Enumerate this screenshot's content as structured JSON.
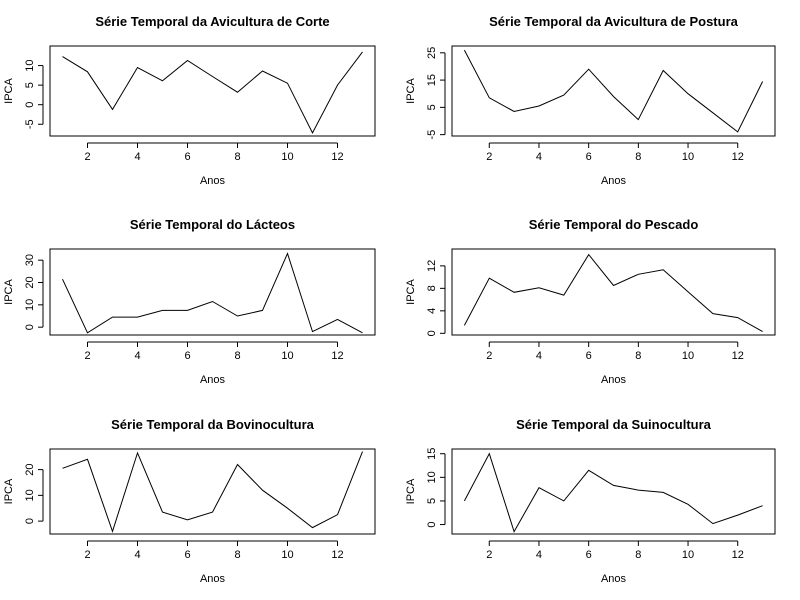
{
  "chart_data": [
    {
      "type": "line",
      "title": "Série Temporal da Avicultura de Corte",
      "xlabel": "Anos",
      "ylabel": "IPCA",
      "x": [
        1,
        2,
        3,
        4,
        5,
        6,
        7,
        8,
        9,
        10,
        11,
        12,
        13
      ],
      "values": [
        12.3,
        8.4,
        -1.2,
        9.5,
        6.1,
        11.3,
        7.2,
        3.2,
        8.6,
        5.5,
        -7.2,
        5.0,
        13.5
      ],
      "xticks": [
        "2",
        "4",
        "6",
        "8",
        "10",
        "12"
      ],
      "yticks": [
        "-5",
        "0",
        "5",
        "10"
      ],
      "xlim": [
        0.5,
        13.5
      ],
      "ylim": [
        -8,
        15
      ],
      "grid": false
    },
    {
      "type": "line",
      "title": "Série Temporal da Avicultura de Postura",
      "xlabel": "Anos",
      "ylabel": "IPCA",
      "x": [
        1,
        2,
        3,
        4,
        5,
        6,
        7,
        8,
        9,
        10,
        11,
        12,
        13
      ],
      "values": [
        26.0,
        8.5,
        3.5,
        5.5,
        9.5,
        19.0,
        9.0,
        0.5,
        18.5,
        10.0,
        3.0,
        -4.0,
        14.5
      ],
      "xticks": [
        "2",
        "4",
        "6",
        "8",
        "10",
        "12"
      ],
      "yticks": [
        "-5",
        "5",
        "15",
        "25"
      ],
      "xlim": [
        0.5,
        13.5
      ],
      "ylim": [
        -5.5,
        27.5
      ],
      "grid": false
    },
    {
      "type": "line",
      "title": "Série Temporal do Lácteos",
      "xlabel": "Anos",
      "ylabel": "IPCA",
      "x": [
        1,
        2,
        3,
        4,
        5,
        6,
        7,
        8,
        9,
        10,
        11,
        12,
        13
      ],
      "values": [
        21.5,
        -2.5,
        4.5,
        4.5,
        7.5,
        7.5,
        11.5,
        5.0,
        7.5,
        33.0,
        -2.0,
        3.5,
        -2.5
      ],
      "xticks": [
        "2",
        "4",
        "6",
        "8",
        "10",
        "12"
      ],
      "yticks": [
        "0",
        "10",
        "20",
        "30"
      ],
      "xlim": [
        0.5,
        13.5
      ],
      "ylim": [
        -3.5,
        35
      ],
      "grid": false
    },
    {
      "type": "line",
      "title": "Série Temporal do Pescado",
      "xlabel": "Anos",
      "ylabel": "IPCA",
      "x": [
        1,
        2,
        3,
        4,
        5,
        6,
        7,
        8,
        9,
        10,
        11,
        12,
        13
      ],
      "values": [
        1.4,
        9.8,
        7.3,
        8.1,
        6.8,
        14.0,
        8.5,
        10.5,
        11.3,
        7.4,
        3.5,
        2.8,
        0.3
      ],
      "xticks": [
        "2",
        "4",
        "6",
        "8",
        "10",
        "12"
      ],
      "yticks": [
        "0",
        "4",
        "8",
        "12"
      ],
      "xlim": [
        0.5,
        13.5
      ],
      "ylim": [
        -0.3,
        15
      ],
      "grid": false
    },
    {
      "type": "line",
      "title": "Série Temporal da Bovinocultura",
      "xlabel": "Anos",
      "ylabel": "IPCA",
      "x": [
        1,
        2,
        3,
        4,
        5,
        6,
        7,
        8,
        9,
        10,
        11,
        12,
        13
      ],
      "values": [
        20.5,
        24.0,
        -4.0,
        26.5,
        3.5,
        0.5,
        3.5,
        22.0,
        12.0,
        5.0,
        -2.5,
        2.5,
        27.0
      ],
      "xticks": [
        "2",
        "4",
        "6",
        "8",
        "10",
        "12"
      ],
      "yticks": [
        "0",
        "10",
        "20"
      ],
      "xlim": [
        0.5,
        13.5
      ],
      "ylim": [
        -5,
        28
      ],
      "grid": false
    },
    {
      "type": "line",
      "title": "Série Temporal da Suinocultura",
      "xlabel": "Anos",
      "ylabel": "IPCA",
      "x": [
        1,
        2,
        3,
        4,
        5,
        6,
        7,
        8,
        9,
        10,
        11,
        12,
        13
      ],
      "values": [
        5.0,
        15.0,
        -1.5,
        7.8,
        5.0,
        11.5,
        8.3,
        7.3,
        6.8,
        4.3,
        0.2,
        2.0,
        4.0
      ],
      "xticks": [
        "2",
        "4",
        "6",
        "8",
        "10",
        "12"
      ],
      "yticks": [
        "0",
        "5",
        "10",
        "15"
      ],
      "xlim": [
        0.5,
        13.5
      ],
      "ylim": [
        -2,
        16
      ],
      "grid": false
    }
  ]
}
